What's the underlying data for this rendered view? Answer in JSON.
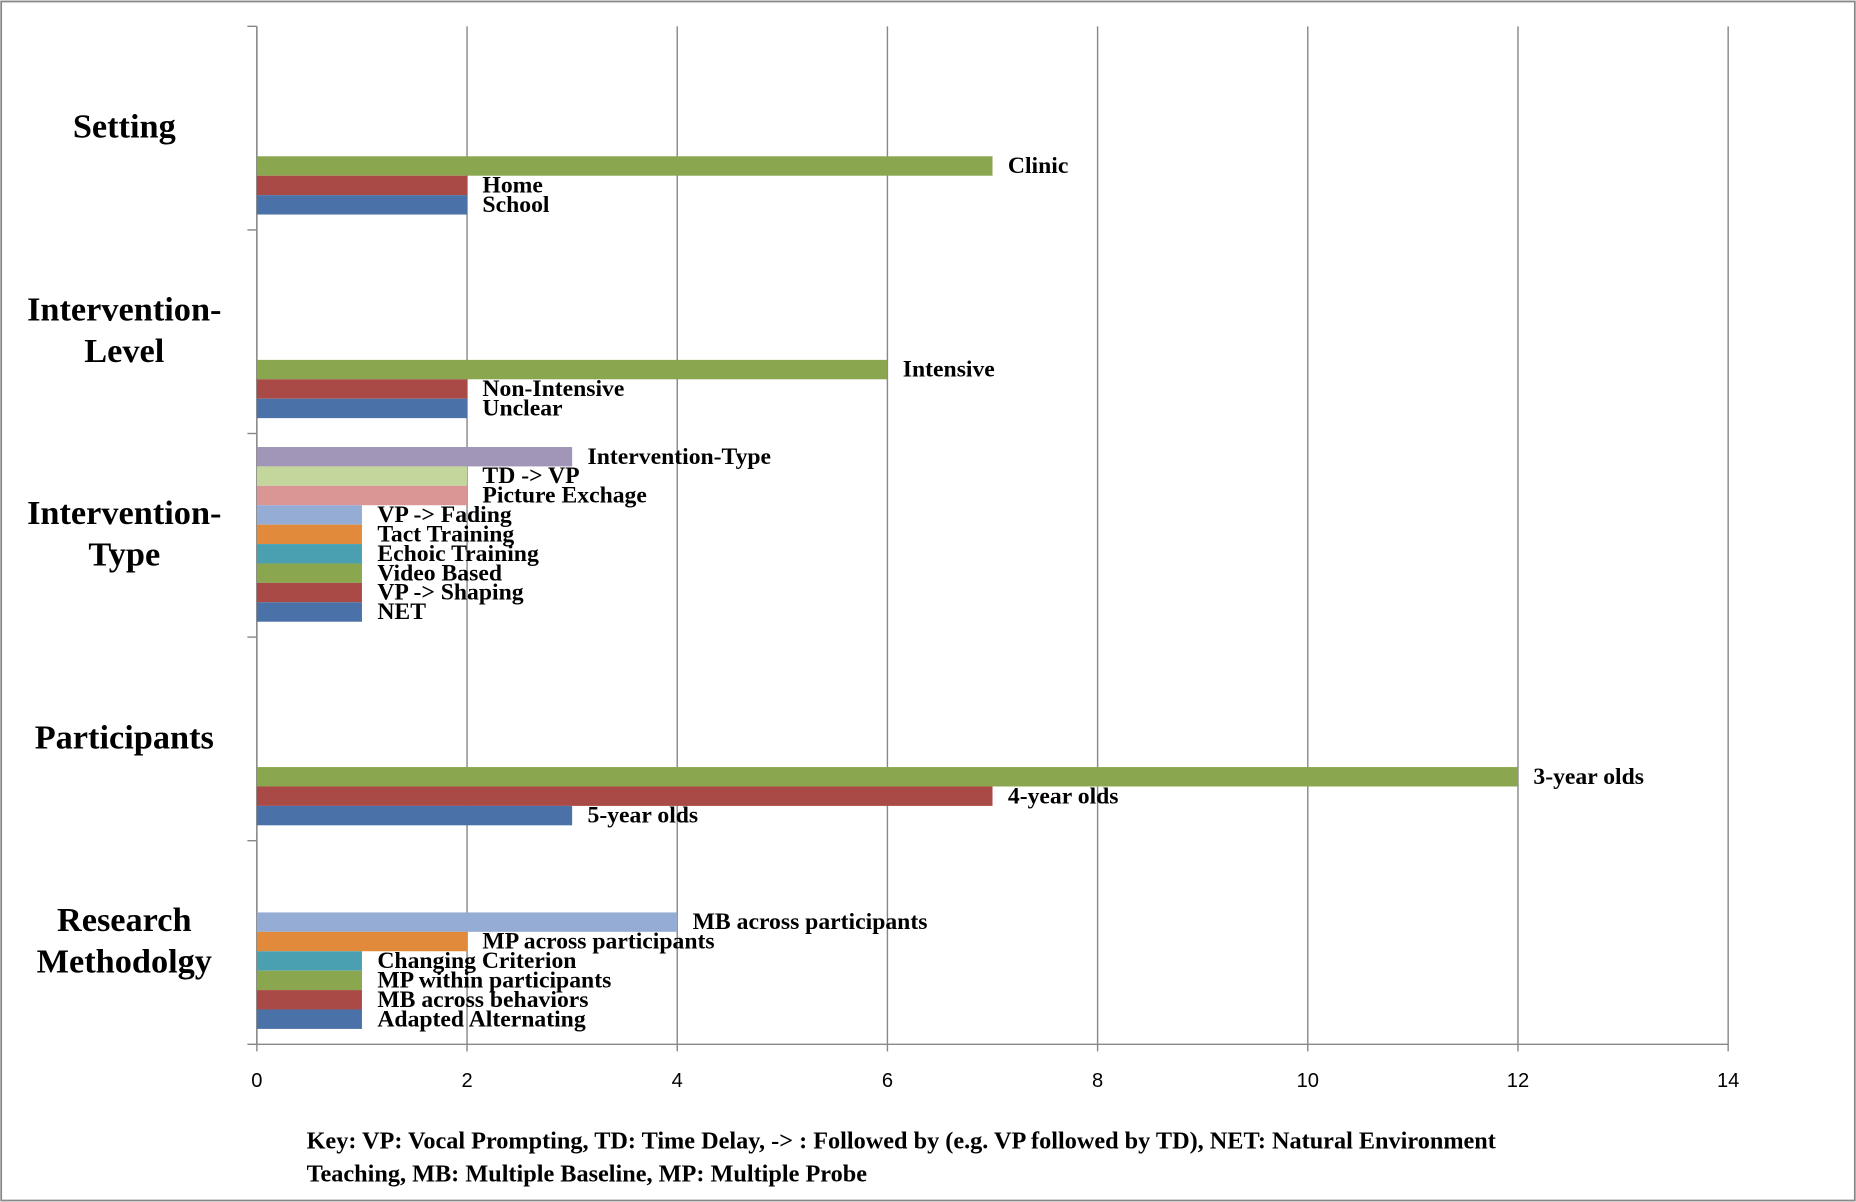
{
  "chart_data": {
    "type": "bar",
    "orientation": "horizontal",
    "xlim": [
      0,
      14
    ],
    "xticks": [
      0,
      2,
      4,
      6,
      8,
      10,
      12,
      14
    ],
    "grid": true,
    "groups": [
      {
        "label_lines": [
          "Setting"
        ],
        "bars": [
          {
            "label": "Clinic",
            "value": 7,
            "color": "#8aa64e"
          },
          {
            "label": "Home",
            "value": 2,
            "color": "#a94a47"
          },
          {
            "label": "School",
            "value": 2,
            "color": "#4a72a8"
          }
        ]
      },
      {
        "label_lines": [
          "Intervention-",
          "Level"
        ],
        "bars": [
          {
            "label": "Intensive",
            "value": 6,
            "color": "#8aa64e"
          },
          {
            "label": "Non-Intensive",
            "value": 2,
            "color": "#a94a47"
          },
          {
            "label": "Unclear",
            "value": 2,
            "color": "#4a72a8"
          }
        ]
      },
      {
        "label_lines": [
          "Intervention-",
          "Type"
        ],
        "bars": [
          {
            "label": "Intervention-Type",
            "value": 3,
            "color": "#a195b8"
          },
          {
            "label": "TD -> VP",
            "value": 2,
            "color": "#c3d69b"
          },
          {
            "label": "Picture Exchage",
            "value": 2,
            "color": "#d99694"
          },
          {
            "label": "VP -> Fading",
            "value": 1,
            "color": "#95acd4"
          },
          {
            "label": "Tact Training",
            "value": 1,
            "color": "#e28a3b"
          },
          {
            "label": "Echoic Training",
            "value": 1,
            "color": "#4aa0b0"
          },
          {
            "label": "Video Based",
            "value": 1,
            "color": "#8aa64e"
          },
          {
            "label": "VP -> Shaping",
            "value": 1,
            "color": "#a94a47"
          },
          {
            "label": "NET",
            "value": 1,
            "color": "#4a72a8"
          }
        ]
      },
      {
        "label_lines": [
          "Participants"
        ],
        "bars": [
          {
            "label": "3-year olds",
            "value": 12,
            "color": "#8aa64e"
          },
          {
            "label": "4-year olds",
            "value": 7,
            "color": "#a94a47"
          },
          {
            "label": "5-year olds",
            "value": 3,
            "color": "#4a72a8"
          }
        ]
      },
      {
        "label_lines": [
          "Research",
          "Methodolgy"
        ],
        "bars": [
          {
            "label": "MB across participants",
            "value": 4,
            "color": "#95acd4"
          },
          {
            "label": "MP across participants",
            "value": 2,
            "color": "#e28a3b"
          },
          {
            "label": "Changing Criterion",
            "value": 1,
            "color": "#4aa0b0"
          },
          {
            "label": "MP within participants",
            "value": 1,
            "color": "#8aa64e"
          },
          {
            "label": "MB across behaviors",
            "value": 1,
            "color": "#a94a47"
          },
          {
            "label": "Adapted Alternating",
            "value": 1,
            "color": "#4a72a8"
          }
        ]
      }
    ],
    "note_lines": [
      "Key: VP: Vocal Prompting, TD: Time Delay, -> : Followed by (e.g. VP followed by TD), NET: Natural Environment",
      "Teaching, MB: Multiple Baseline, MP: Multiple Probe"
    ]
  }
}
